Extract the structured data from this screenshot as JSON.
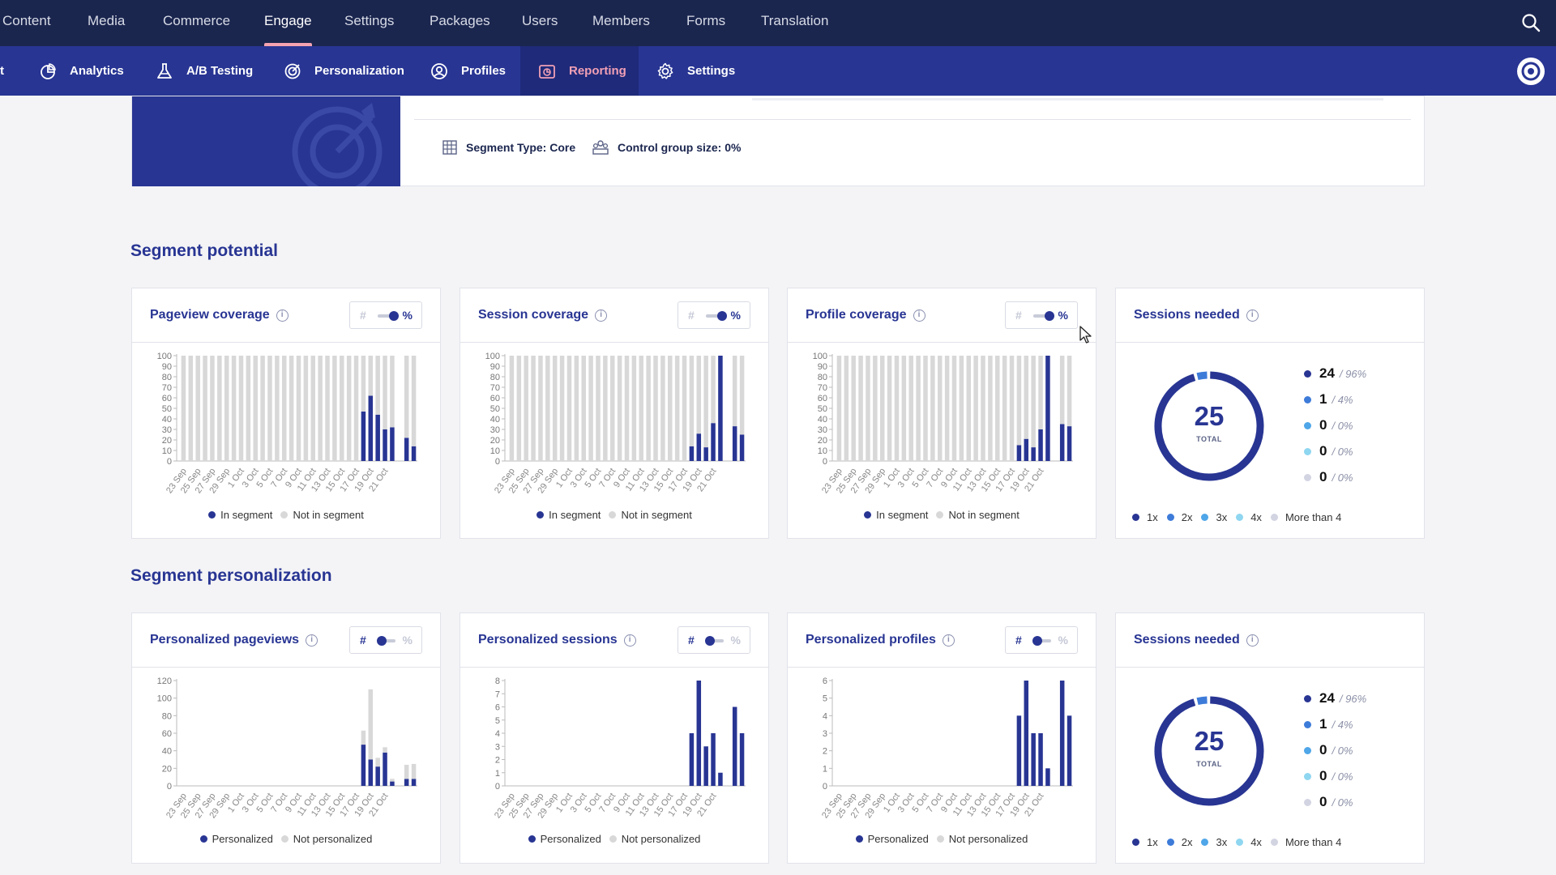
{
  "top_nav": {
    "items": [
      {
        "label": "Content",
        "active": false
      },
      {
        "label": "Media",
        "active": false
      },
      {
        "label": "Commerce",
        "active": false
      },
      {
        "label": "Engage",
        "active": true
      },
      {
        "label": "Settings",
        "active": false
      },
      {
        "label": "Packages",
        "active": false
      },
      {
        "label": "Users",
        "active": false
      },
      {
        "label": "Members",
        "active": false
      },
      {
        "label": "Forms",
        "active": false
      },
      {
        "label": "Translation",
        "active": false
      }
    ],
    "search_icon": "search-icon"
  },
  "sub_nav": {
    "clipped_label": "t",
    "items": [
      {
        "label": "Analytics",
        "icon": "analytics-icon",
        "active": false
      },
      {
        "label": "A/B Testing",
        "icon": "flask-icon",
        "active": false
      },
      {
        "label": "Personalization",
        "icon": "target-icon",
        "active": false
      },
      {
        "label": "Profiles",
        "icon": "profile-icon",
        "active": false
      },
      {
        "label": "Reporting",
        "icon": "reporting-icon",
        "active": true
      },
      {
        "label": "Settings",
        "icon": "gear-icon",
        "active": false
      }
    ]
  },
  "segment_info": {
    "segment_type": "Segment Type: Core",
    "control_group": "Control group size: 0%"
  },
  "sections": {
    "potential_title": "Segment potential",
    "personalization_title": "Segment personalization"
  },
  "dates": [
    "23 Sep",
    "25 Sep",
    "27 Sep",
    "29 Sep",
    "1 Oct",
    "3 Oct",
    "5 Oct",
    "7 Oct",
    "9 Oct",
    "11 Oct",
    "13 Oct",
    "15 Oct",
    "17 Oct",
    "19 Oct",
    "21 Oct"
  ],
  "cards": {
    "pageview_coverage": {
      "title": "Pageview coverage",
      "toggle": "%"
    },
    "session_coverage": {
      "title": "Session coverage",
      "toggle": "%"
    },
    "profile_coverage": {
      "title": "Profile coverage",
      "toggle": "%"
    },
    "sessions_needed_1": {
      "title": "Sessions needed"
    },
    "personalized_pageviews": {
      "title": "Personalized pageviews",
      "toggle": "#"
    },
    "personalized_sessions": {
      "title": "Personalized sessions",
      "toggle": "#"
    },
    "personalized_profiles": {
      "title": "Personalized profiles",
      "toggle": "#"
    },
    "sessions_needed_2": {
      "title": "Sessions needed"
    }
  },
  "toggle_labels": {
    "count": "#",
    "percent": "%"
  },
  "legends": {
    "in_segment": "In segment",
    "not_in_segment": "Not in segment",
    "personalized": "Personalized",
    "not_personalized": "Not personalized"
  },
  "donut": {
    "total": "25",
    "total_label": "TOTAL",
    "rows": [
      {
        "value": "24",
        "pct": "/ 96%",
        "color": "#283593"
      },
      {
        "value": "1",
        "pct": "/ 4%",
        "color": "#3d7bd9"
      },
      {
        "value": "0",
        "pct": "/ 0%",
        "color": "#4fa6e8"
      },
      {
        "value": "0",
        "pct": "/ 0%",
        "color": "#8fd6f0"
      },
      {
        "value": "0",
        "pct": "/ 0%",
        "color": "#d2d4e2"
      }
    ],
    "legend": [
      "1x",
      "2x",
      "3x",
      "4x",
      "More than 4"
    ]
  },
  "colors": {
    "primary": "#283593",
    "grey_bar": "#d8d8d8",
    "nav_dark": "#1b264f",
    "active_pink": "#f1a0b5"
  },
  "chart_data": [
    {
      "type": "bar",
      "title": "Pageview coverage",
      "ylim": [
        0,
        100
      ],
      "yticks": [
        0,
        10,
        20,
        30,
        40,
        50,
        60,
        70,
        80,
        90,
        100
      ],
      "xtick_labels": [
        "23 Sep",
        "25 Sep",
        "27 Sep",
        "29 Sep",
        "1 Oct",
        "3 Oct",
        "5 Oct",
        "7 Oct",
        "9 Oct",
        "11 Oct",
        "13 Oct",
        "15 Oct",
        "17 Oct",
        "19 Oct",
        "21 Oct"
      ],
      "stacked": true,
      "series": [
        {
          "name": "In segment",
          "values": [
            0,
            0,
            0,
            0,
            0,
            0,
            0,
            0,
            0,
            0,
            0,
            0,
            0,
            0,
            0,
            0,
            0,
            0,
            0,
            0,
            0,
            0,
            0,
            0,
            0,
            47,
            62,
            44,
            30,
            32,
            0,
            22,
            14
          ]
        },
        {
          "name": "Not in segment",
          "values": [
            100,
            100,
            100,
            100,
            100,
            100,
            100,
            100,
            100,
            100,
            100,
            100,
            100,
            100,
            100,
            100,
            100,
            100,
            100,
            100,
            100,
            100,
            100,
            100,
            100,
            53,
            38,
            56,
            70,
            68,
            0,
            78,
            86
          ]
        }
      ]
    },
    {
      "type": "bar",
      "title": "Session coverage",
      "ylim": [
        0,
        100
      ],
      "yticks": [
        0,
        10,
        20,
        30,
        40,
        50,
        60,
        70,
        80,
        90,
        100
      ],
      "xtick_labels": [
        "23 Sep",
        "25 Sep",
        "27 Sep",
        "29 Sep",
        "1 Oct",
        "3 Oct",
        "5 Oct",
        "7 Oct",
        "9 Oct",
        "11 Oct",
        "13 Oct",
        "15 Oct",
        "17 Oct",
        "19 Oct",
        "21 Oct"
      ],
      "stacked": true,
      "series": [
        {
          "name": "In segment",
          "values": [
            0,
            0,
            0,
            0,
            0,
            0,
            0,
            0,
            0,
            0,
            0,
            0,
            0,
            0,
            0,
            0,
            0,
            0,
            0,
            0,
            0,
            0,
            0,
            0,
            0,
            14,
            26,
            13,
            36,
            100,
            0,
            33,
            25
          ]
        },
        {
          "name": "Not in segment",
          "values": [
            100,
            100,
            100,
            100,
            100,
            100,
            100,
            100,
            100,
            100,
            100,
            100,
            100,
            100,
            100,
            100,
            100,
            100,
            100,
            100,
            100,
            100,
            100,
            100,
            100,
            86,
            74,
            87,
            64,
            0,
            0,
            67,
            75
          ]
        }
      ]
    },
    {
      "type": "bar",
      "title": "Profile coverage",
      "ylim": [
        0,
        100
      ],
      "yticks": [
        0,
        10,
        20,
        30,
        40,
        50,
        60,
        70,
        80,
        90,
        100
      ],
      "xtick_labels": [
        "23 Sep",
        "25 Sep",
        "27 Sep",
        "29 Sep",
        "1 Oct",
        "3 Oct",
        "5 Oct",
        "7 Oct",
        "9 Oct",
        "11 Oct",
        "13 Oct",
        "15 Oct",
        "17 Oct",
        "19 Oct",
        "21 Oct"
      ],
      "stacked": true,
      "series": [
        {
          "name": "In segment",
          "values": [
            0,
            0,
            0,
            0,
            0,
            0,
            0,
            0,
            0,
            0,
            0,
            0,
            0,
            0,
            0,
            0,
            0,
            0,
            0,
            0,
            0,
            0,
            0,
            0,
            0,
            15,
            21,
            13,
            30,
            100,
            0,
            35,
            33
          ]
        },
        {
          "name": "Not in segment",
          "values": [
            100,
            100,
            100,
            100,
            100,
            100,
            100,
            100,
            100,
            100,
            100,
            100,
            100,
            100,
            100,
            100,
            100,
            100,
            100,
            100,
            100,
            100,
            100,
            100,
            100,
            85,
            79,
            87,
            70,
            0,
            0,
            65,
            67
          ]
        }
      ]
    },
    {
      "type": "bar",
      "title": "Personalized pageviews",
      "ylim": [
        0,
        120
      ],
      "yticks": [
        0,
        20,
        40,
        60,
        80,
        100,
        120
      ],
      "xtick_labels": [
        "23 Sep",
        "25 Sep",
        "27 Sep",
        "29 Sep",
        "1 Oct",
        "3 Oct",
        "5 Oct",
        "7 Oct",
        "9 Oct",
        "11 Oct",
        "13 Oct",
        "15 Oct",
        "17 Oct",
        "19 Oct",
        "21 Oct"
      ],
      "stacked": true,
      "series": [
        {
          "name": "Personalized",
          "values": [
            0,
            0,
            0,
            0,
            0,
            0,
            0,
            0,
            0,
            0,
            0,
            0,
            0,
            0,
            0,
            0,
            0,
            0,
            0,
            0,
            0,
            0,
            0,
            0,
            0,
            47,
            30,
            22,
            38,
            5,
            0,
            8,
            8
          ]
        },
        {
          "name": "Not personalized",
          "values": [
            0,
            0,
            0,
            0,
            0,
            0,
            0,
            0,
            0,
            0,
            0,
            0,
            0,
            0,
            0,
            0,
            0,
            0,
            0,
            0,
            0,
            0,
            0,
            0,
            0,
            16,
            80,
            10,
            6,
            3,
            0,
            16,
            17
          ]
        }
      ]
    },
    {
      "type": "bar",
      "title": "Personalized sessions",
      "ylim": [
        0,
        8
      ],
      "yticks": [
        0,
        1,
        2,
        3,
        4,
        5,
        6,
        7,
        8
      ],
      "xtick_labels": [
        "23 Sep",
        "25 Sep",
        "27 Sep",
        "29 Sep",
        "1 Oct",
        "3 Oct",
        "5 Oct",
        "7 Oct",
        "9 Oct",
        "11 Oct",
        "13 Oct",
        "15 Oct",
        "17 Oct",
        "19 Oct",
        "21 Oct"
      ],
      "stacked": true,
      "series": [
        {
          "name": "Personalized",
          "values": [
            0,
            0,
            0,
            0,
            0,
            0,
            0,
            0,
            0,
            0,
            0,
            0,
            0,
            0,
            0,
            0,
            0,
            0,
            0,
            0,
            0,
            0,
            0,
            0,
            0,
            4,
            8,
            3,
            4,
            1,
            0,
            6,
            4
          ]
        },
        {
          "name": "Not personalized",
          "values": [
            0,
            0,
            0,
            0,
            0,
            0,
            0,
            0,
            0,
            0,
            0,
            0,
            0,
            0,
            0,
            0,
            0,
            0,
            0,
            0,
            0,
            0,
            0,
            0,
            0,
            0,
            0,
            0,
            0,
            0,
            0,
            0,
            0
          ]
        }
      ]
    },
    {
      "type": "bar",
      "title": "Personalized profiles",
      "ylim": [
        0,
        6
      ],
      "yticks": [
        0,
        1,
        2,
        3,
        4,
        5,
        6
      ],
      "xtick_labels": [
        "23 Sep",
        "25 Sep",
        "27 Sep",
        "29 Sep",
        "1 Oct",
        "3 Oct",
        "5 Oct",
        "7 Oct",
        "9 Oct",
        "11 Oct",
        "13 Oct",
        "15 Oct",
        "17 Oct",
        "19 Oct",
        "21 Oct"
      ],
      "stacked": true,
      "series": [
        {
          "name": "Personalized",
          "values": [
            0,
            0,
            0,
            0,
            0,
            0,
            0,
            0,
            0,
            0,
            0,
            0,
            0,
            0,
            0,
            0,
            0,
            0,
            0,
            0,
            0,
            0,
            0,
            0,
            0,
            4,
            6,
            3,
            3,
            1,
            0,
            6,
            4
          ]
        },
        {
          "name": "Not personalized",
          "values": [
            0,
            0,
            0,
            0,
            0,
            0,
            0,
            0,
            0,
            0,
            0,
            0,
            0,
            0,
            0,
            0,
            0,
            0,
            0,
            0,
            0,
            0,
            0,
            0,
            0,
            0,
            0,
            0,
            0,
            0,
            0,
            0,
            0
          ]
        }
      ]
    },
    {
      "type": "pie",
      "title": "Sessions needed",
      "labels": [
        "1x",
        "2x",
        "3x",
        "4x",
        "More than 4"
      ],
      "values": [
        24,
        1,
        0,
        0,
        0
      ],
      "total": 25
    },
    {
      "type": "pie",
      "title": "Sessions needed",
      "labels": [
        "1x",
        "2x",
        "3x",
        "4x",
        "More than 4"
      ],
      "values": [
        24,
        1,
        0,
        0,
        0
      ],
      "total": 25
    }
  ]
}
